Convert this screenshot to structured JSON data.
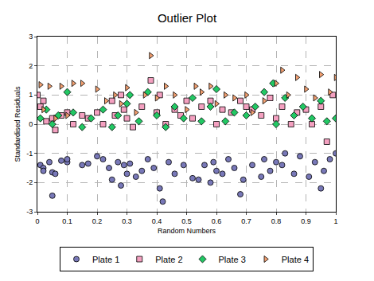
{
  "chart_data": {
    "type": "scatter",
    "title": "Outlier Plot",
    "x_label": "Random Numbers",
    "y_label": "Standardised Residuals",
    "xlim": [
      0,
      1
    ],
    "xticks": [
      0,
      0.1,
      0.2,
      0.3,
      0.4,
      0.5,
      0.6,
      0.7,
      0.8,
      0.9,
      1
    ],
    "ylim": [
      -3,
      3
    ],
    "yticks": [
      -3,
      -2,
      -1,
      0,
      1,
      2,
      3
    ],
    "grid": true,
    "legend": "bottom",
    "series": [
      {
        "name": "Plate 1",
        "color": "#7878b8",
        "marker": "circle",
        "x": [
          0.01,
          0.02,
          0.02,
          0.04,
          0.05,
          0.05,
          0.06,
          0.08,
          0.1,
          0.1,
          0.15,
          0.17,
          0.2,
          0.22,
          0.24,
          0.25,
          0.27,
          0.28,
          0.29,
          0.3,
          0.31,
          0.33,
          0.35,
          0.37,
          0.39,
          0.41,
          0.42,
          0.44,
          0.46,
          0.49,
          0.52,
          0.54,
          0.56,
          0.58,
          0.59,
          0.6,
          0.62,
          0.64,
          0.66,
          0.68,
          0.69,
          0.72,
          0.75,
          0.76,
          0.78,
          0.8,
          0.82,
          0.83,
          0.86,
          0.88,
          0.91,
          0.93,
          0.95,
          0.96,
          0.98,
          1.0
        ],
        "values": [
          -1.4,
          -1.5,
          -1.6,
          -1.3,
          -1.65,
          -2.45,
          -1.7,
          -1.25,
          -1.3,
          -1.2,
          -1.4,
          -1.35,
          -1.1,
          -1.2,
          -1.5,
          -1.9,
          -1.3,
          -2.1,
          -1.4,
          -1.7,
          -1.35,
          -1.8,
          -1.6,
          -1.2,
          -1.5,
          -2.2,
          -2.65,
          -1.3,
          -1.7,
          -1.4,
          -1.85,
          -1.9,
          -1.4,
          -2.0,
          -1.3,
          -1.6,
          -1.7,
          -1.2,
          -1.5,
          -2.4,
          -1.9,
          -1.4,
          -1.8,
          -1.2,
          -1.6,
          -1.3,
          -1.4,
          -1.0,
          -1.7,
          -1.1,
          -1.8,
          -1.3,
          -2.2,
          -1.6,
          -1.2,
          -1.0
        ]
      },
      {
        "name": "Plate 2",
        "color": "#f4a0c0",
        "marker": "square",
        "x": [
          0.0,
          0.01,
          0.02,
          0.03,
          0.05,
          0.06,
          0.08,
          0.1,
          0.12,
          0.15,
          0.17,
          0.2,
          0.22,
          0.25,
          0.26,
          0.28,
          0.29,
          0.3,
          0.32,
          0.35,
          0.38,
          0.4,
          0.41,
          0.43,
          0.46,
          0.48,
          0.5,
          0.52,
          0.55,
          0.58,
          0.6,
          0.62,
          0.65,
          0.68,
          0.7,
          0.72,
          0.75,
          0.78,
          0.8,
          0.82,
          0.85,
          0.87,
          0.9,
          0.92,
          0.95,
          0.97,
          0.99
        ],
        "values": [
          1.0,
          0.6,
          0.8,
          0.1,
          0.2,
          -0.2,
          0.3,
          0.4,
          0.0,
          0.3,
          0.2,
          0.4,
          0.0,
          0.8,
          0.3,
          1.0,
          0.5,
          0.2,
          -0.1,
          0.6,
          1.5,
          0.4,
          1.0,
          0.0,
          0.5,
          0.3,
          0.8,
          0.2,
          0.6,
          0.8,
          0.0,
          0.5,
          0.4,
          0.8,
          0.6,
          0.5,
          0.3,
          0.9,
          0.2,
          0.6,
          0.0,
          0.4,
          0.5,
          0.0,
          0.6,
          -0.6,
          1.0
        ]
      },
      {
        "name": "Plate 3",
        "color": "#22c864",
        "marker": "diamond",
        "x": [
          0.01,
          0.03,
          0.05,
          0.07,
          0.1,
          0.12,
          0.15,
          0.18,
          0.22,
          0.25,
          0.27,
          0.3,
          0.31,
          0.34,
          0.37,
          0.4,
          0.43,
          0.46,
          0.49,
          0.52,
          0.55,
          0.58,
          0.6,
          0.63,
          0.66,
          0.7,
          0.73,
          0.76,
          0.79,
          0.8,
          0.83,
          0.86,
          0.89,
          0.92,
          0.95,
          0.97,
          1.0
        ],
        "values": [
          0.2,
          0.5,
          0.0,
          0.3,
          1.1,
          0.4,
          -0.1,
          0.2,
          0.5,
          -0.1,
          0.3,
          0.7,
          1.0,
          0.1,
          1.1,
          0.3,
          -0.1,
          0.6,
          0.2,
          0.9,
          0.1,
          0.6,
          1.2,
          0.1,
          0.4,
          0.3,
          0.6,
          1.1,
          1.4,
          0.0,
          0.9,
          0.3,
          0.6,
          0.2,
          0.8,
          0.1,
          0.2
        ]
      },
      {
        "name": "Plate 4",
        "color": "#f4a070",
        "marker": "triangle-right",
        "x": [
          0.01,
          0.02,
          0.04,
          0.06,
          0.08,
          0.1,
          0.12,
          0.15,
          0.2,
          0.23,
          0.26,
          0.28,
          0.3,
          0.33,
          0.36,
          0.38,
          0.4,
          0.43,
          0.46,
          0.5,
          0.53,
          0.55,
          0.58,
          0.6,
          0.63,
          0.66,
          0.7,
          0.72,
          0.76,
          0.8,
          0.82,
          0.84,
          0.87,
          0.9,
          0.93,
          0.95,
          0.98,
          1.0
        ],
        "values": [
          1.35,
          0.5,
          1.3,
          0.2,
          1.3,
          0.3,
          1.4,
          1.4,
          1.2,
          0.8,
          1.0,
          0.7,
          1.25,
          0.4,
          1.0,
          2.35,
          0.9,
          1.3,
          1.0,
          0.5,
          1.3,
          1.1,
          1.3,
          0.7,
          1.0,
          0.9,
          1.0,
          0.4,
          0.8,
          1.4,
          1.85,
          1.0,
          1.6,
          1.2,
          0.9,
          1.7,
          1.1,
          1.6
        ]
      }
    ]
  }
}
